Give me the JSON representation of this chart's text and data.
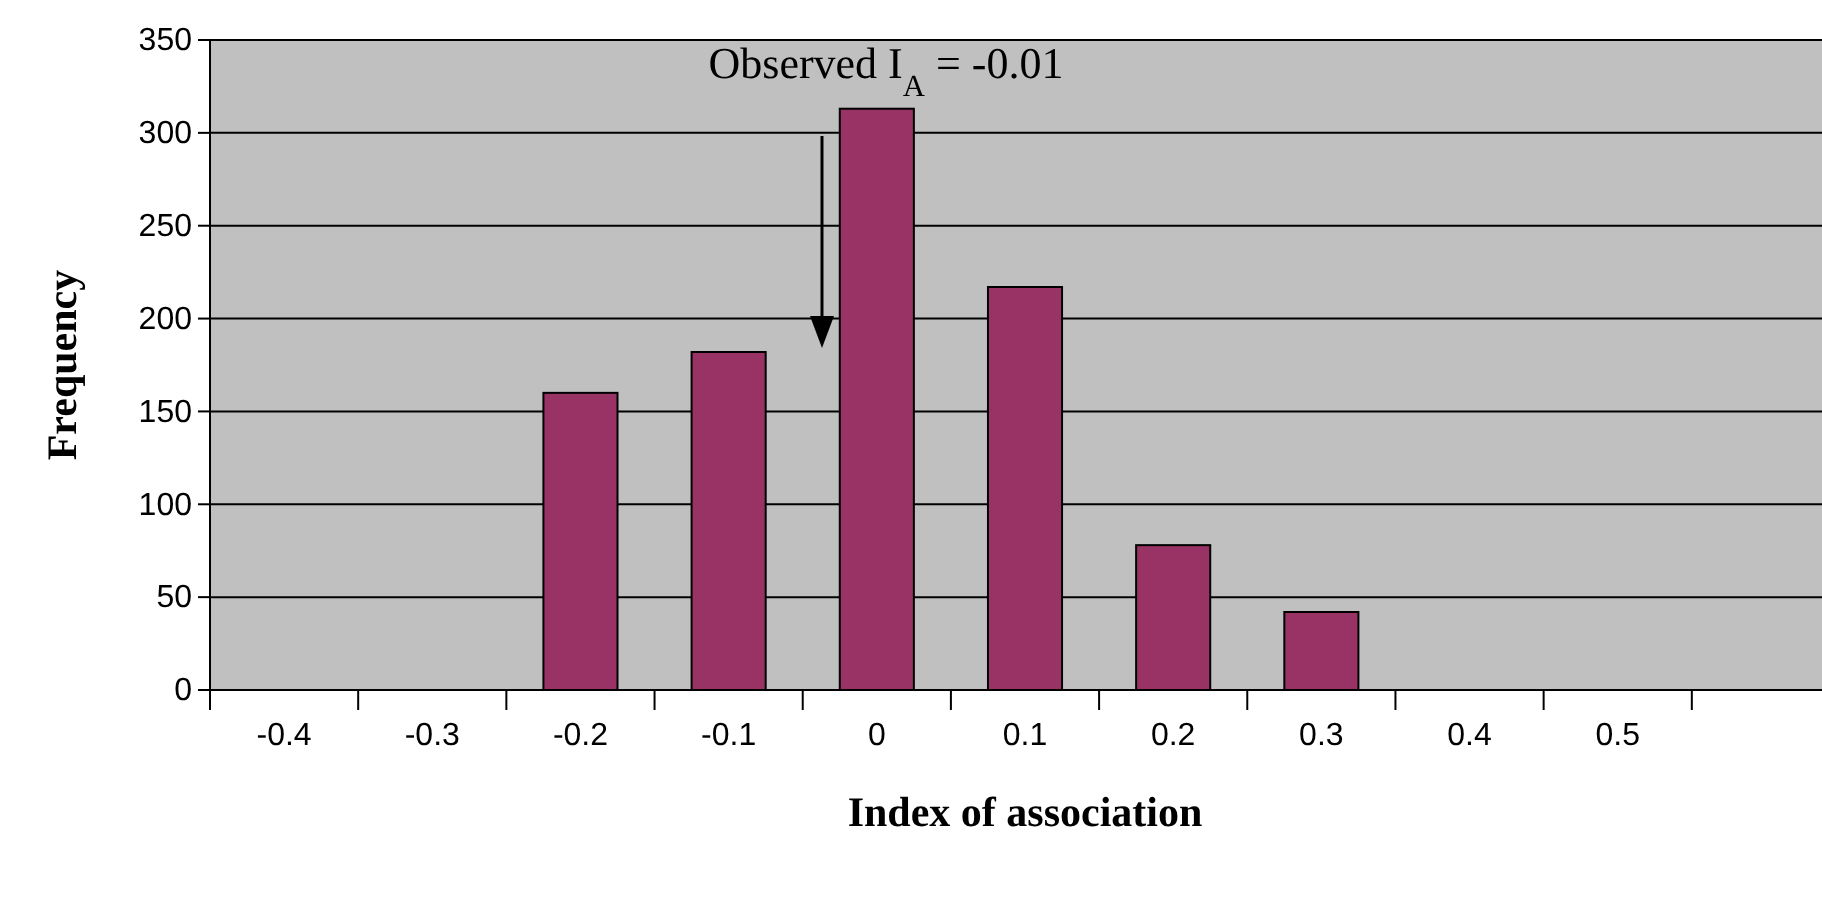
{
  "chart_data": {
    "type": "bar",
    "xlabel": "Index of association",
    "ylabel": "Frequency",
    "categories": [
      "-0.4",
      "-0.3",
      "-0.2",
      "-0.1",
      "0",
      "0.1",
      "0.2",
      "0.3",
      "0.4",
      "0.5",
      null
    ],
    "values": [
      0,
      0,
      160,
      182,
      313,
      217,
      78,
      42,
      0,
      0,
      0
    ],
    "color": "#993366",
    "ylim": [
      0,
      350
    ],
    "yticks": [
      0,
      50,
      100,
      150,
      200,
      250,
      300,
      350
    ],
    "grid": "y",
    "annotations": [
      "Observed I$_{A}$ = -0.01"
    ]
  }
}
